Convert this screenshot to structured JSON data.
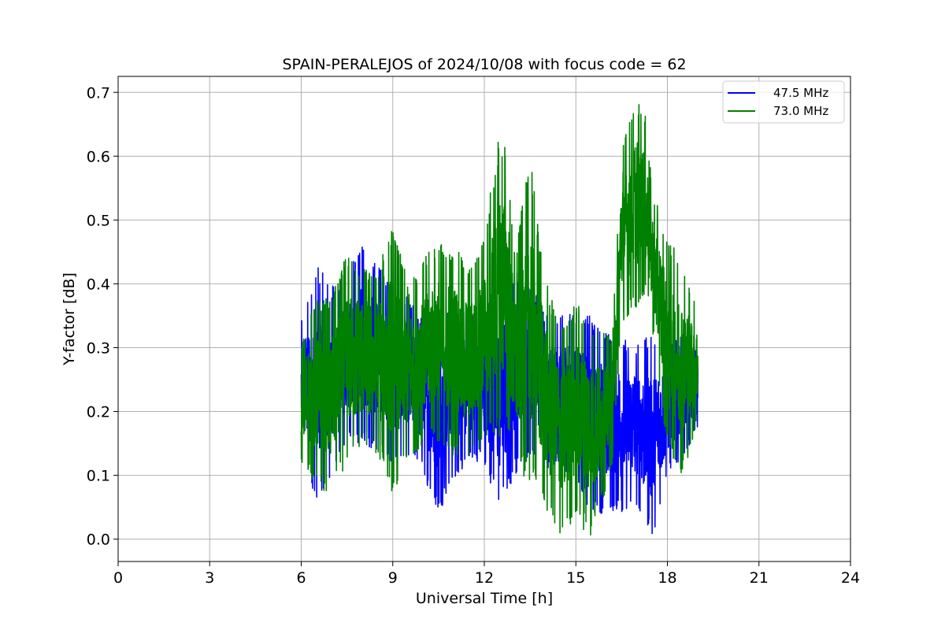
{
  "chart_data": {
    "type": "line",
    "title": "SPAIN-PERALEJOS of 2024/10/08 with focus code = 62",
    "xlabel": "Universal Time [h]",
    "ylabel": "Y-factor [dB]",
    "xlim": [
      0,
      24
    ],
    "ylim": [
      -0.035,
      0.725
    ],
    "xticks": [
      0,
      3,
      6,
      9,
      12,
      15,
      18,
      21,
      24
    ],
    "xtick_labels": [
      "0",
      "3",
      "6",
      "9",
      "12",
      "15",
      "18",
      "21",
      "24"
    ],
    "yticks": [
      0.0,
      0.1,
      0.2,
      0.3,
      0.4,
      0.5,
      0.6,
      0.7
    ],
    "ytick_labels": [
      "0.0",
      "0.1",
      "0.2",
      "0.3",
      "0.4",
      "0.5",
      "0.6",
      "0.7"
    ],
    "grid": true,
    "legend_position": "top-right",
    "series": [
      {
        "name": "47.5 MHz",
        "color": "#0000ff",
        "envelope": {
          "x": [
            6.0,
            6.5,
            7.0,
            7.5,
            8.0,
            8.5,
            9.0,
            9.5,
            10.0,
            10.5,
            11.0,
            11.5,
            12.0,
            12.5,
            13.0,
            13.5,
            14.0,
            14.5,
            15.0,
            15.5,
            16.0,
            16.5,
            17.0,
            17.5,
            18.0,
            18.5,
            19.0
          ],
          "low": [
            0.13,
            0.06,
            0.1,
            0.15,
            0.15,
            0.13,
            0.12,
            0.13,
            0.1,
            0.04,
            0.09,
            0.12,
            0.12,
            0.04,
            0.1,
            0.13,
            0.11,
            0.12,
            0.08,
            0.04,
            0.04,
            0.04,
            0.05,
            0.0,
            0.1,
            0.13,
            0.17
          ],
          "high": [
            0.34,
            0.43,
            0.4,
            0.42,
            0.46,
            0.44,
            0.4,
            0.38,
            0.35,
            0.35,
            0.38,
            0.36,
            0.34,
            0.4,
            0.43,
            0.41,
            0.35,
            0.35,
            0.36,
            0.35,
            0.33,
            0.32,
            0.31,
            0.32,
            0.3,
            0.32,
            0.3
          ]
        }
      },
      {
        "name": "73.0 MHz",
        "color": "#008000",
        "envelope": {
          "x": [
            6.0,
            6.5,
            7.0,
            7.5,
            8.0,
            8.5,
            9.0,
            9.5,
            10.0,
            10.5,
            11.0,
            11.5,
            12.0,
            12.5,
            12.7,
            13.0,
            13.5,
            14.0,
            14.5,
            15.0,
            15.5,
            16.0,
            16.2,
            16.5,
            17.0,
            17.3,
            17.5,
            18.0,
            18.5,
            19.0
          ],
          "low": [
            0.12,
            0.08,
            0.07,
            0.12,
            0.14,
            0.13,
            0.07,
            0.12,
            0.15,
            0.15,
            0.13,
            0.12,
            0.15,
            0.16,
            0.18,
            0.11,
            0.09,
            0.04,
            0.0,
            0.03,
            0.0,
            0.08,
            0.12,
            0.34,
            0.36,
            0.38,
            0.33,
            0.14,
            0.1,
            0.18
          ],
          "high": [
            0.31,
            0.38,
            0.38,
            0.45,
            0.43,
            0.42,
            0.5,
            0.4,
            0.44,
            0.47,
            0.46,
            0.43,
            0.48,
            0.64,
            0.63,
            0.45,
            0.6,
            0.41,
            0.33,
            0.38,
            0.34,
            0.32,
            0.32,
            0.63,
            0.69,
            0.66,
            0.55,
            0.47,
            0.44,
            0.36
          ]
        }
      }
    ]
  }
}
